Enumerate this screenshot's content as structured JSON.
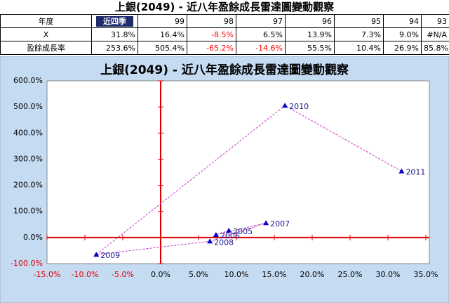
{
  "title": "上銀(2049) - 近八年盈餘成長雷達圖變動觀察",
  "table": {
    "header": [
      "年度",
      "近四季",
      "99",
      "98",
      "97",
      "96",
      "95",
      "94",
      "93"
    ],
    "rows": [
      [
        "X",
        "31.8%",
        "16.4%",
        "-8.5%",
        "6.5%",
        "13.9%",
        "7.3%",
        "9.0%",
        "#N/A"
      ],
      [
        "盈餘成長率",
        "253.6%",
        "505.4%",
        "-65.2%",
        "-14.6%",
        "55.5%",
        "10.4%",
        "26.9%",
        "85.8%"
      ]
    ],
    "negative_color": "#ff0000"
  },
  "chart_data": {
    "type": "scatter",
    "title": "上銀(2049) - 近八年盈餘成長雷達圖變動觀察",
    "x": [
      31.8,
      16.4,
      -8.5,
      6.5,
      13.9,
      7.3,
      9.0
    ],
    "series": [
      {
        "color": "#0000cc",
        "line_color": "#cc33cc",
        "values": [
          253.6,
          505.4,
          -65.2,
          -14.6,
          55.5,
          10.4,
          26.9
        ],
        "point_labels": [
          "2011",
          "2010",
          "2009",
          "2008",
          "2007",
          "2006",
          "2005"
        ]
      }
    ],
    "xlim": [
      -15,
      35
    ],
    "ylim": [
      -100,
      600
    ],
    "xticks": [
      {
        "value": -15,
        "label": "-15.0%"
      },
      {
        "value": -10,
        "label": "-10.0%"
      },
      {
        "value": -5,
        "label": "-5.0%"
      },
      {
        "value": 0,
        "label": "0.0%"
      },
      {
        "value": 5,
        "label": "5.0%"
      },
      {
        "value": 10,
        "label": "10.0%"
      },
      {
        "value": 15,
        "label": "15.0%"
      },
      {
        "value": 20,
        "label": "20.0%"
      },
      {
        "value": 25,
        "label": "25.0%"
      },
      {
        "value": 30,
        "label": "30.0%"
      },
      {
        "value": 35,
        "label": "35.0%"
      }
    ],
    "yticks": [
      {
        "value": -100,
        "label": "-100.0%"
      },
      {
        "value": 0,
        "label": "0.0%"
      },
      {
        "value": 100,
        "label": "100.0%"
      },
      {
        "value": 200,
        "label": "200.0%"
      },
      {
        "value": 300,
        "label": "300.0%"
      },
      {
        "value": 400,
        "label": "400.0%"
      },
      {
        "value": 500,
        "label": "500.0%"
      },
      {
        "value": 600,
        "label": "600.0%"
      }
    ],
    "axis_color": "#e00000",
    "negative_tick_color": "#e00000"
  }
}
